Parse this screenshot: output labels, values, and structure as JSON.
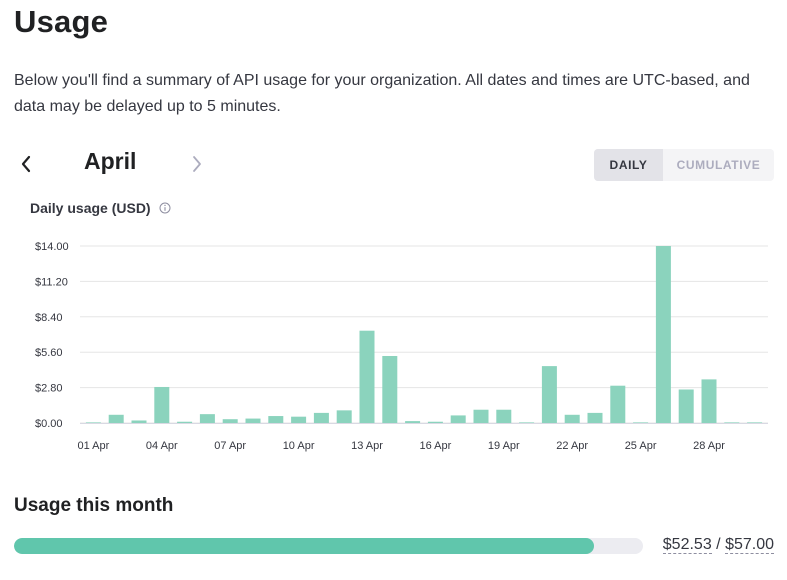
{
  "page": {
    "title": "Usage",
    "description": "Below you'll find a summary of API usage for your organization. All dates and times are UTC-based, and data may be delayed up to 5 minutes."
  },
  "month_nav": {
    "month": "April",
    "prev_icon": "chevron-left-icon",
    "next_icon": "chevron-right-icon"
  },
  "view_toggle": {
    "daily_label": "DAILY",
    "cumulative_label": "CUMULATIVE",
    "selected": "DAILY"
  },
  "chart_title": "Daily usage (USD)",
  "colors": {
    "bar": "#8bd3bd",
    "progress": "#60c6ac",
    "grid": "#e5e5e5"
  },
  "chart_data": {
    "type": "bar",
    "title": "Daily usage (USD)",
    "categories": [
      "01 Apr",
      "02 Apr",
      "03 Apr",
      "04 Apr",
      "05 Apr",
      "06 Apr",
      "07 Apr",
      "08 Apr",
      "09 Apr",
      "10 Apr",
      "11 Apr",
      "12 Apr",
      "13 Apr",
      "14 Apr",
      "15 Apr",
      "16 Apr",
      "17 Apr",
      "18 Apr",
      "19 Apr",
      "20 Apr",
      "21 Apr",
      "22 Apr",
      "23 Apr",
      "24 Apr",
      "25 Apr",
      "26 Apr",
      "27 Apr",
      "28 Apr",
      "29 Apr",
      "30 Apr"
    ],
    "values": [
      0.05,
      0.65,
      0.2,
      2.85,
      0.1,
      0.7,
      0.3,
      0.35,
      0.55,
      0.5,
      0.8,
      1.0,
      7.3,
      5.3,
      0.15,
      0.1,
      0.6,
      1.05,
      1.05,
      0.05,
      4.5,
      0.65,
      0.8,
      2.95,
      0.05,
      14.0,
      2.65,
      3.45,
      0.05,
      0.05
    ],
    "x_tick_labels": [
      "01 Apr",
      "04 Apr",
      "07 Apr",
      "10 Apr",
      "13 Apr",
      "16 Apr",
      "19 Apr",
      "22 Apr",
      "25 Apr",
      "28 Apr"
    ],
    "y_tick_labels": [
      "$0.00",
      "$2.80",
      "$5.60",
      "$8.40",
      "$11.20",
      "$14.00"
    ],
    "y_ticks": [
      0,
      2.8,
      5.6,
      8.4,
      11.2,
      14.0
    ],
    "ylim": [
      0,
      14.0
    ],
    "xlabel": "",
    "ylabel": "",
    "grid": true
  },
  "usage_month": {
    "title": "Usage this month",
    "used": "$52.53",
    "separator": " / ",
    "limit": "$57.00",
    "progress_fraction": 0.9216
  }
}
